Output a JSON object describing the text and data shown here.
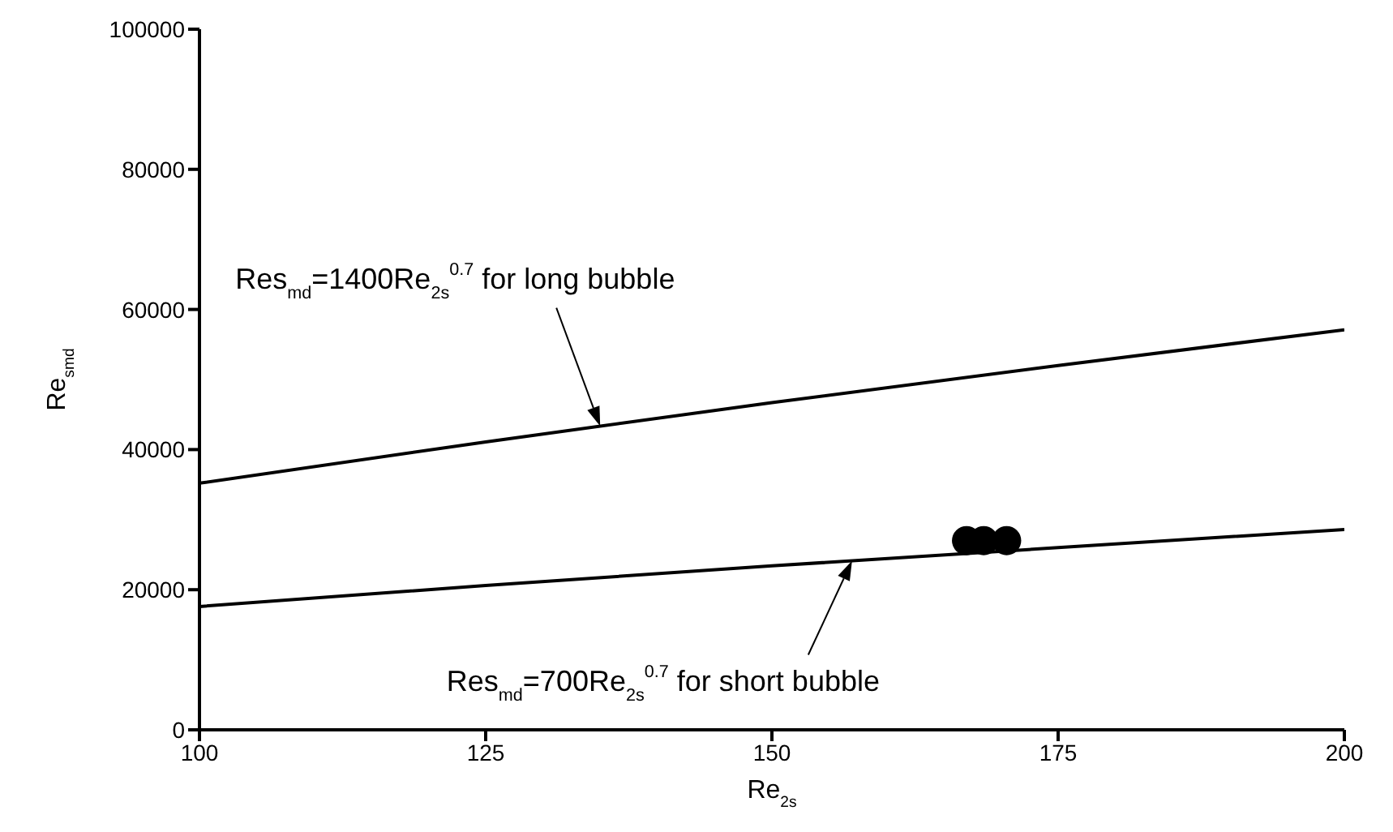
{
  "chart_data": {
    "type": "line",
    "xlabel": "Re$_{2s}$",
    "ylabel": "Re$_{smd}$",
    "xlim": [
      100,
      200
    ],
    "xticks": [
      100,
      125,
      150,
      175,
      200
    ],
    "ylim": [
      0,
      100000
    ],
    "yticks": [
      0,
      20000,
      40000,
      60000,
      80000,
      100000
    ],
    "grid": false,
    "line_style": "solid",
    "series": [
      {
        "color": "#000000",
        "x": [
          100,
          125,
          150,
          175,
          200
        ],
        "values": [
          35200,
          41100,
          46700,
          52000,
          57100
        ]
      },
      {
        "color": "#000000",
        "x": [
          100,
          125,
          150,
          175,
          200
        ],
        "values": [
          17600,
          20600,
          23400,
          26000,
          28600
        ]
      },
      {
        "type": "scatter",
        "color": "#000000",
        "marker": "circle",
        "x": [
          167,
          168.5,
          170.5
        ],
        "values": [
          27000,
          27000,
          27000
        ]
      }
    ],
    "annotations": [
      "Res$_{md}$=1400Re$_{2s}$$^{0.7}$   for long bubble",
      "Res$_{md}$=700Re$_{2s}$$^{0.7}$   for short bubble"
    ]
  }
}
